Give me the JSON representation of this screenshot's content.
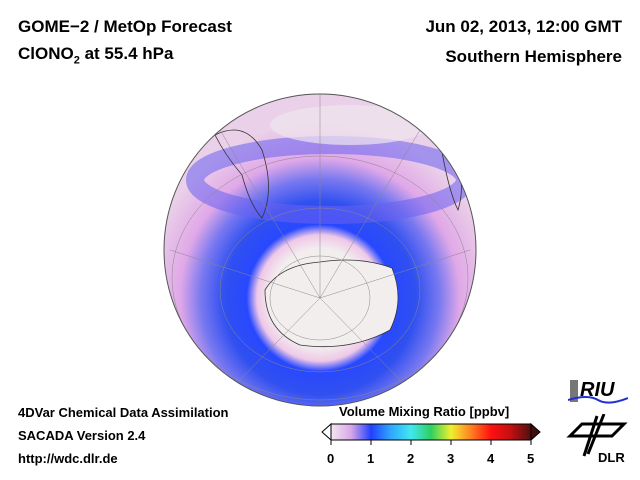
{
  "header": {
    "title_line1": "GOME−2 / MetOp Forecast",
    "species_prefix": "ClONO",
    "species_subscript": "2",
    "level_text": "at 55.4 hPa",
    "datetime": "Jun 02, 2013, 12:00 GMT",
    "region": "Southern Hemisphere"
  },
  "footer": {
    "line1": "4DVar Chemical Data Assimilation",
    "line2": "SACADA Version 2.4",
    "line3": "http://wdc.dlr.de"
  },
  "colorbar": {
    "title": "Volume Mixing Ratio [ppbv]",
    "ticks": [
      "0",
      "1",
      "2",
      "3",
      "4",
      "5"
    ],
    "colors": [
      "#f3e8ee",
      "#d9a8e8",
      "#2040ff",
      "#30a8ff",
      "#40e8f0",
      "#30d060",
      "#f0f030",
      "#ff8020",
      "#ff1010",
      "#c01010",
      "#501010"
    ]
  },
  "logos": {
    "riu": "RIU",
    "dlr": "DLR"
  }
}
